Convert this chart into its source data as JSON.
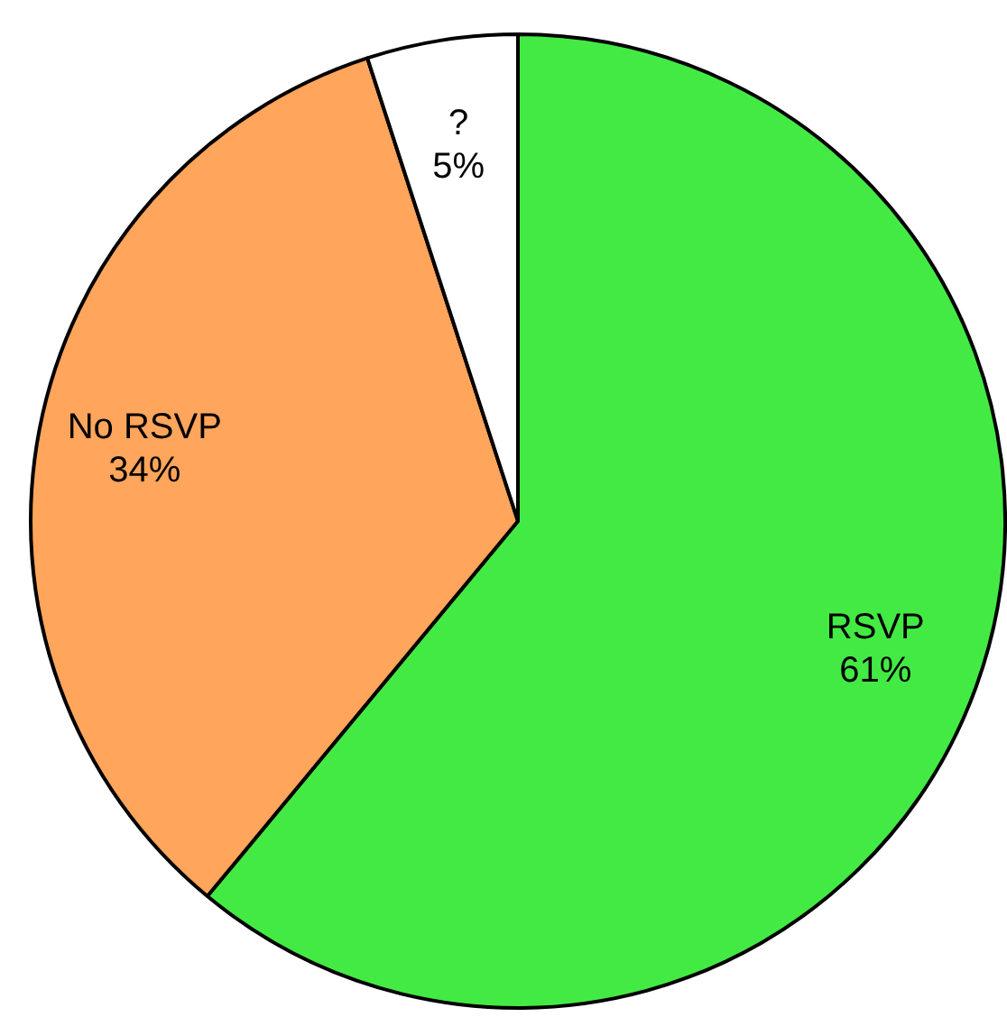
{
  "chart_data": {
    "type": "pie",
    "categories": [
      "RSVP",
      "No RSVP",
      "?"
    ],
    "values": [
      61,
      34,
      5
    ],
    "value_labels": [
      "61%",
      "34%",
      "5%"
    ],
    "colors": [
      "#44ea44",
      "#ffa55c",
      "#ffffff"
    ],
    "legend": false
  }
}
